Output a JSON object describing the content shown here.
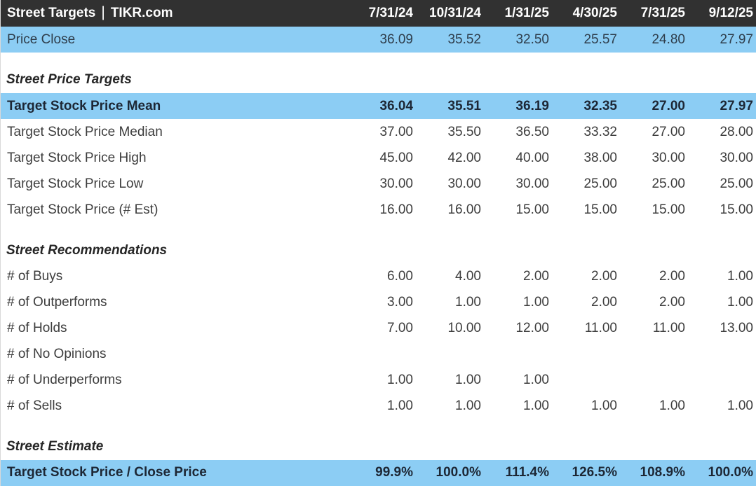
{
  "header": {
    "title": "Street Targets",
    "separator": "|",
    "brand": "TIKR.com",
    "columns": [
      "7/31/24",
      "10/31/24",
      "1/31/25",
      "4/30/25",
      "7/31/25",
      "9/12/25"
    ]
  },
  "colors": {
    "header_bg": "#313131",
    "header_text": "#ffffff",
    "highlight_blue": "#8ccdf4",
    "body_text": "#3d3d3d",
    "bold_text_on_blue": "#1d2735",
    "left_border": "#d9d9d9"
  },
  "rows": [
    {
      "type": "data",
      "highlight": true,
      "bold": false,
      "label": "Price Close",
      "values": [
        "36.09",
        "35.52",
        "32.50",
        "25.57",
        "24.80",
        "27.97"
      ]
    },
    {
      "type": "gap"
    },
    {
      "type": "section",
      "label": "Street Price Targets"
    },
    {
      "type": "data",
      "highlight": true,
      "bold": true,
      "label": "Target Stock Price Mean",
      "values": [
        "36.04",
        "35.51",
        "36.19",
        "32.35",
        "27.00",
        "27.97"
      ]
    },
    {
      "type": "data",
      "highlight": false,
      "bold": false,
      "label": "Target Stock Price Median",
      "values": [
        "37.00",
        "35.50",
        "36.50",
        "33.32",
        "27.00",
        "28.00"
      ]
    },
    {
      "type": "data",
      "highlight": false,
      "bold": false,
      "label": "Target Stock Price High",
      "values": [
        "45.00",
        "42.00",
        "40.00",
        "38.00",
        "30.00",
        "30.00"
      ]
    },
    {
      "type": "data",
      "highlight": false,
      "bold": false,
      "label": "Target Stock Price Low",
      "values": [
        "30.00",
        "30.00",
        "30.00",
        "25.00",
        "25.00",
        "25.00"
      ]
    },
    {
      "type": "data",
      "highlight": false,
      "bold": false,
      "label": "Target Stock Price (# Est)",
      "values": [
        "16.00",
        "16.00",
        "15.00",
        "15.00",
        "15.00",
        "15.00"
      ]
    },
    {
      "type": "gap"
    },
    {
      "type": "section",
      "label": "Street Recommendations"
    },
    {
      "type": "data",
      "highlight": false,
      "bold": false,
      "label": "# of Buys",
      "values": [
        "6.00",
        "4.00",
        "2.00",
        "2.00",
        "2.00",
        "1.00"
      ]
    },
    {
      "type": "data",
      "highlight": false,
      "bold": false,
      "label": "# of Outperforms",
      "values": [
        "3.00",
        "1.00",
        "1.00",
        "2.00",
        "2.00",
        "1.00"
      ]
    },
    {
      "type": "data",
      "highlight": false,
      "bold": false,
      "label": "# of Holds",
      "values": [
        "7.00",
        "10.00",
        "12.00",
        "11.00",
        "11.00",
        "13.00"
      ]
    },
    {
      "type": "data",
      "highlight": false,
      "bold": false,
      "label": "# of No Opinions",
      "values": [
        "",
        "",
        "",
        "",
        "",
        ""
      ]
    },
    {
      "type": "data",
      "highlight": false,
      "bold": false,
      "label": "# of Underperforms",
      "values": [
        "1.00",
        "1.00",
        "1.00",
        "",
        "",
        ""
      ]
    },
    {
      "type": "data",
      "highlight": false,
      "bold": false,
      "label": "# of Sells",
      "values": [
        "1.00",
        "1.00",
        "1.00",
        "1.00",
        "1.00",
        "1.00"
      ]
    },
    {
      "type": "gap"
    },
    {
      "type": "section",
      "label": "Street Estimate"
    },
    {
      "type": "data",
      "highlight": true,
      "bold": true,
      "label": "Target Stock Price / Close Price",
      "values": [
        "99.9%",
        "100.0%",
        "111.4%",
        "126.5%",
        "108.9%",
        "100.0%"
      ]
    }
  ]
}
